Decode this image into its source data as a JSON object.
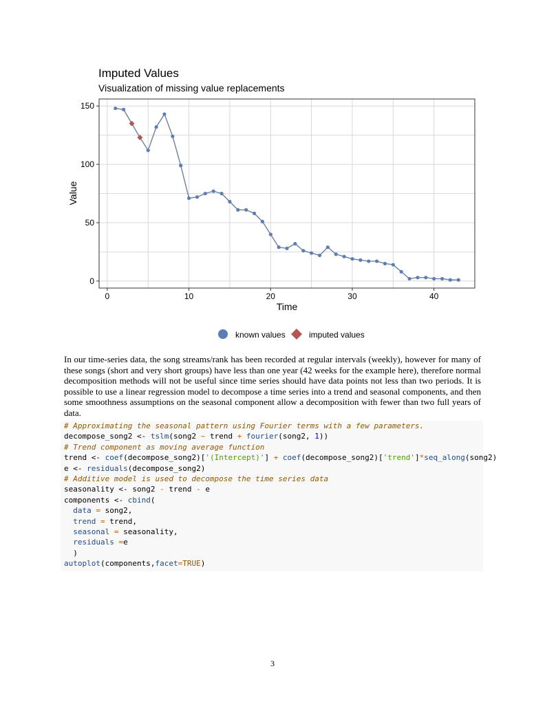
{
  "chart_data": {
    "type": "line",
    "title": "Imputed Values",
    "subtitle": "Visualization of missing value replacements",
    "xlabel": "Time",
    "ylabel": "Value",
    "xlim": [
      -1,
      45
    ],
    "ylim": [
      -6,
      156
    ],
    "xticks": [
      0,
      10,
      20,
      30,
      40
    ],
    "yticks": [
      0,
      50,
      100,
      150
    ],
    "grid": true,
    "legend_position": "bottom",
    "series": [
      {
        "name": "known values",
        "color": "#5b7fb5",
        "marker": "circle",
        "x": [
          1,
          2,
          5,
          6,
          7,
          8,
          9,
          10,
          11,
          12,
          13,
          14,
          15,
          16,
          17,
          18,
          19,
          20,
          21,
          22,
          23,
          24,
          25,
          26,
          27,
          28,
          29,
          30,
          31,
          32,
          33,
          34,
          35,
          36,
          37,
          38,
          39,
          40,
          41,
          42,
          43
        ],
        "y": [
          148,
          147,
          112,
          132,
          143,
          124,
          99,
          71,
          72,
          75,
          77,
          75,
          68,
          61,
          61,
          58,
          51,
          40,
          29,
          28,
          32,
          26,
          24,
          22,
          29,
          23,
          21,
          19,
          18,
          17,
          17,
          15,
          14,
          8,
          2,
          3,
          3,
          2,
          2,
          1,
          1
        ]
      },
      {
        "name": "imputed values",
        "color": "#b65353",
        "marker": "diamond",
        "x": [
          3,
          4
        ],
        "y": [
          135,
          123
        ]
      }
    ],
    "line_color": "#6d7f99",
    "legend": [
      "known values",
      "imputed values"
    ]
  },
  "paragraph": "In our time-series data, the song streams/rank has been recorded at regular intervals (weekly), however for many of these songs (short and very short groups) have less than one year (42 weeks for the example here), therefore normal decomposition methods will not be useful since time series should have data points not less than two periods. It is possible to use a linear regression model to decompose a time series into a trend and seasonal components, and then some smoothness assumptions on the seasonal component allow a decomposition with fewer than two full years of data.",
  "code": {
    "comment1": "# Approximating the seasonal pattern using Fourier terms with a few parameters.",
    "line2_a": "decompose_song2 ",
    "line2_assign": "<-",
    "line2_fun": " tslm",
    "line2_b": "(song2 ",
    "line2_tilde": "~",
    "line2_c": " trend ",
    "line2_plus": "+",
    "line2_fun2": " fourier",
    "line2_d": "(song2, ",
    "line2_num": "1",
    "line2_e": "))",
    "comment2": "# Trend component as moving average function",
    "line4_a": "trend ",
    "line4_assign": "<-",
    "line4_fun": " coef",
    "line4_b": "(decompose_song2)[",
    "line4_str1": "'(Intercept)'",
    "line4_c": "] ",
    "line4_plus": "+",
    "line4_fun2": " coef",
    "line4_d": "(decompose_song2)[",
    "line4_str2": "'trend'",
    "line4_e": "]",
    "line4_mul": "*",
    "line4_fun3": "seq_along",
    "line4_f": "(song2)",
    "line5_a": "e ",
    "line5_assign": "<-",
    "line5_fun": " residuals",
    "line5_b": "(decompose_song2)",
    "comment3": "# Additive model is used to decompose the time series data",
    "line7_a": "seasonality ",
    "line7_assign": "<-",
    "line7_b": " song2 ",
    "line7_minus1": "-",
    "line7_c": " trend ",
    "line7_minus2": "-",
    "line7_d": " e",
    "line8_a": "components ",
    "line8_assign": "<-",
    "line8_fun": " cbind",
    "line8_b": "(",
    "arg1": "data",
    "arg1_eq": " =",
    "arg1_val": " song2,",
    "arg2": "trend",
    "arg2_eq": " =",
    "arg2_val": " trend,",
    "arg3": "seasonal",
    "arg3_eq": " =",
    "arg3_val": " seasonality,",
    "arg4": "residuals",
    "arg4_eq": " =",
    "arg4_val": "e",
    "close_paren": ")",
    "line14_fun": "autoplot",
    "line14_a": "(components,",
    "line14_arg": "facet",
    "line14_eq": "=",
    "line14_const": "TRUE",
    "line14_b": ")"
  },
  "page_number": "3"
}
